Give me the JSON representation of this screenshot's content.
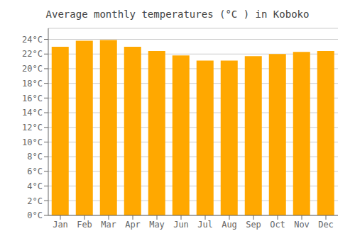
{
  "chart_data": {
    "type": "bar",
    "title": "Average monthly temperatures (°C ) in Koboko",
    "categories": [
      "Jan",
      "Feb",
      "Mar",
      "Apr",
      "May",
      "Jun",
      "Jul",
      "Aug",
      "Sep",
      "Oct",
      "Nov",
      "Dec"
    ],
    "values": [
      23.0,
      23.8,
      23.9,
      23.0,
      22.4,
      21.8,
      21.1,
      21.1,
      21.7,
      22.0,
      22.3,
      22.4
    ],
    "color": "#FFA800",
    "ylim": [
      0,
      25.5
    ],
    "yticks": [
      {
        "value": 0,
        "label": "0°C"
      },
      {
        "value": 2,
        "label": "2°C"
      },
      {
        "value": 4,
        "label": "4°C"
      },
      {
        "value": 6,
        "label": "6°C"
      },
      {
        "value": 8,
        "label": "8°C"
      },
      {
        "value": 10,
        "label": "10°C"
      },
      {
        "value": 12,
        "label": "12°C"
      },
      {
        "value": 14,
        "label": "14°C"
      },
      {
        "value": 16,
        "label": "16°C"
      },
      {
        "value": 18,
        "label": "18°C"
      },
      {
        "value": 20,
        "label": "20°C"
      },
      {
        "value": 22,
        "label": "22°C"
      },
      {
        "value": 24,
        "label": "24°C"
      }
    ],
    "grid": true
  }
}
